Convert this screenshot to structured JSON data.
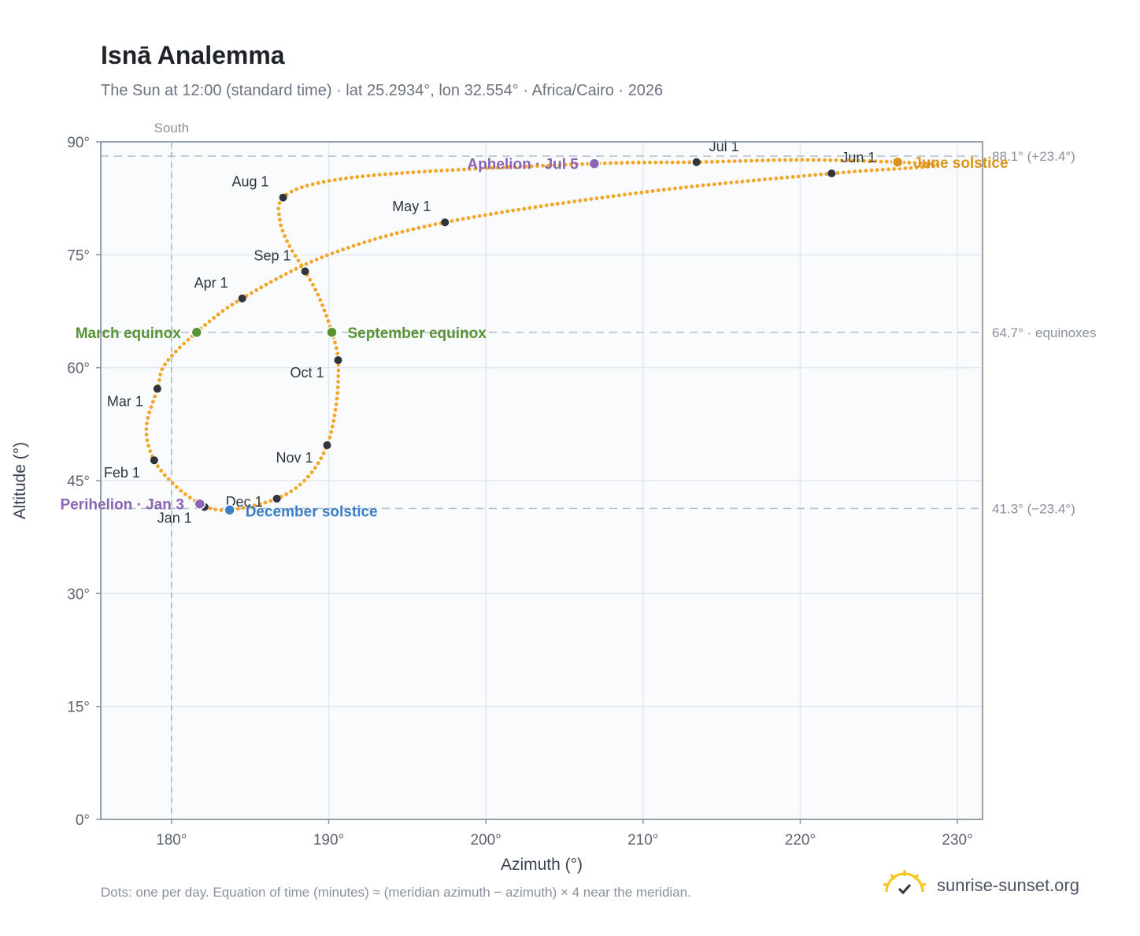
{
  "header": {
    "title": "Isnā Analemma",
    "subtitle": "The Sun at 12:00 (standard time) · lat 25.2934°, lon 32.554° · Africa/Cairo · 2026"
  },
  "footer": {
    "note": "Dots: one per day. Equation of time (minutes) ≈ (meridian azimuth − azimuth) × 4 near the meridian.",
    "brand": "sunrise-sunset.org",
    "brand_icon": "sun-logo-icon"
  },
  "chart_data": {
    "type": "scatter",
    "title": "Isnā Analemma",
    "xlabel": "Azimuth (°)",
    "ylabel": "Altitude (°)",
    "xlim": [
      175.5,
      231.6
    ],
    "ylim": [
      0,
      90
    ],
    "xticks": [
      180,
      190,
      200,
      210,
      220,
      230
    ],
    "xtick_labels": [
      "180°",
      "190°",
      "200°",
      "210°",
      "220°",
      "230°"
    ],
    "yticks": [
      0,
      15,
      30,
      45,
      60,
      75,
      90
    ],
    "ytick_labels": [
      "0°",
      "15°",
      "30°",
      "45°",
      "60°",
      "75°",
      "90°"
    ],
    "grid": true,
    "meridian": {
      "azimuth": 180,
      "label": "South"
    },
    "reference_lines": [
      {
        "altitude": 88.1,
        "label": "88.1° (+23.4°)"
      },
      {
        "altitude": 64.7,
        "label": "64.7° · equinoxes"
      },
      {
        "altitude": 41.3,
        "label": "41.3° (−23.4°)"
      }
    ],
    "path_color": "#f2a62a",
    "month_color": "#2f343d",
    "months": [
      {
        "label": "Jan 1",
        "az": 182.1,
        "alt": 41.5
      },
      {
        "label": "Feb 1",
        "az": 178.9,
        "alt": 47.7
      },
      {
        "label": "Mar 1",
        "az": 179.1,
        "alt": 57.2
      },
      {
        "label": "Apr 1",
        "az": 184.5,
        "alt": 69.2
      },
      {
        "label": "May 1",
        "az": 197.4,
        "alt": 79.3
      },
      {
        "label": "Jun 1",
        "az": 222.0,
        "alt": 85.8
      },
      {
        "label": "Jul 1",
        "az": 213.4,
        "alt": 87.3
      },
      {
        "label": "Aug 1",
        "az": 187.1,
        "alt": 82.6
      },
      {
        "label": "Sep 1",
        "az": 188.5,
        "alt": 72.8
      },
      {
        "label": "Oct 1",
        "az": 190.6,
        "alt": 61.0
      },
      {
        "label": "Nov 1",
        "az": 189.9,
        "alt": 49.7
      },
      {
        "label": "Dec 1",
        "az": 186.7,
        "alt": 42.6
      }
    ],
    "events": [
      {
        "label": "March equinox",
        "az": 181.6,
        "alt": 64.7,
        "color": "#5a9236"
      },
      {
        "label": "September equinox",
        "az": 190.2,
        "alt": 64.7,
        "color": "#5a9236"
      },
      {
        "label": "June solstice",
        "az": 226.2,
        "alt": 87.3,
        "color": "#d9951a"
      },
      {
        "label": "December solstice",
        "az": 183.7,
        "alt": 41.1,
        "color": "#3c7ec2"
      },
      {
        "label": "Perihelion · Jan 3",
        "az": 181.8,
        "alt": 41.9,
        "color": "#8c64b4"
      },
      {
        "label": "Aphelion · Jul 5",
        "az": 206.9,
        "alt": 87.1,
        "color": "#8c64b4"
      }
    ],
    "path_keypoints": [
      [
        182.1,
        41.5
      ],
      [
        183.7,
        41.1
      ],
      [
        186.7,
        42.6
      ],
      [
        188.6,
        45.3
      ],
      [
        189.9,
        49.7
      ],
      [
        190.5,
        55.5
      ],
      [
        190.6,
        61.0
      ],
      [
        190.2,
        64.7
      ],
      [
        189.4,
        69.3
      ],
      [
        188.5,
        72.8
      ],
      [
        187.5,
        76.2
      ],
      [
        186.9,
        79.5
      ],
      [
        187.1,
        82.6
      ],
      [
        189.5,
        84.6
      ],
      [
        195.0,
        85.9
      ],
      [
        206.9,
        87.1
      ],
      [
        213.4,
        87.3
      ],
      [
        220.0,
        87.6
      ],
      [
        226.2,
        87.3
      ],
      [
        228.6,
        86.8
      ],
      [
        222.0,
        85.8
      ],
      [
        210.0,
        83.3
      ],
      [
        197.4,
        79.3
      ],
      [
        190.0,
        75.0
      ],
      [
        184.5,
        69.2
      ],
      [
        181.6,
        64.7
      ],
      [
        179.6,
        60.5
      ],
      [
        179.1,
        57.2
      ],
      [
        178.4,
        52.0
      ],
      [
        178.9,
        47.7
      ],
      [
        180.4,
        44.0
      ],
      [
        182.1,
        41.5
      ]
    ]
  }
}
